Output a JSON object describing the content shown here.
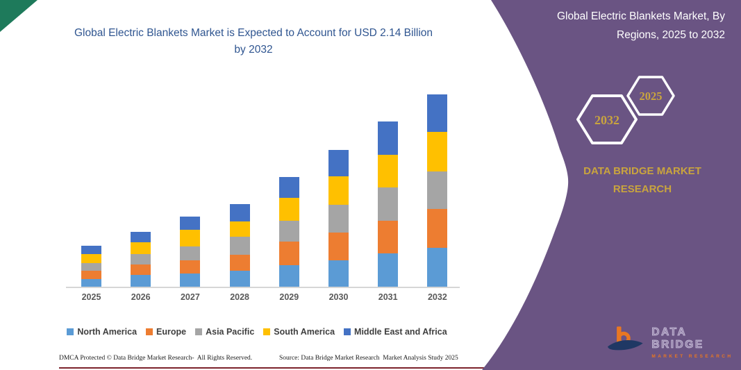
{
  "page": {
    "background": "#ffffff",
    "corner_triangle_color": "#1E7A5B",
    "bottom_rule_color": "#7B222B"
  },
  "chart_data": {
    "type": "bar",
    "stacked": true,
    "title": "Global Electric Blankets Market is Expected to Account for USD 2.14 Billion by 2032",
    "unit": "USD Billion",
    "categories": [
      "2025",
      "2026",
      "2027",
      "2028",
      "2029",
      "2030",
      "2031",
      "2032"
    ],
    "series": [
      {
        "name": "North America",
        "color": "#5B9BD5",
        "values": [
          0.085,
          0.129,
          0.149,
          0.18,
          0.237,
          0.294,
          0.369,
          0.431
        ]
      },
      {
        "name": "Europe",
        "color": "#ED7D31",
        "values": [
          0.095,
          0.116,
          0.147,
          0.176,
          0.268,
          0.307,
          0.366,
          0.433
        ]
      },
      {
        "name": "Asia Pacific",
        "color": "#A5A5A5",
        "values": [
          0.085,
          0.121,
          0.155,
          0.199,
          0.232,
          0.315,
          0.369,
          0.418
        ]
      },
      {
        "name": "South America",
        "color": "#FFC000",
        "values": [
          0.1,
          0.129,
          0.18,
          0.172,
          0.253,
          0.312,
          0.366,
          0.446
        ]
      },
      {
        "name": "Middle East and Africa",
        "color": "#4472C4",
        "values": [
          0.093,
          0.116,
          0.147,
          0.196,
          0.232,
          0.299,
          0.369,
          0.412
        ]
      }
    ],
    "totals": [
      0.46,
      0.61,
      0.78,
      0.92,
      1.22,
      1.53,
      1.84,
      2.14
    ],
    "ylim": [
      0,
      2.2
    ],
    "y_axis_visible": false,
    "grid": false,
    "legend_position": "bottom",
    "title_color": "#2F5590"
  },
  "sidebar": {
    "panel_color": "#6A5483",
    "title": "Global Electric Blankets Market, By Regions, 2025 to 2032",
    "hexagon_badges": [
      {
        "label": "2032"
      },
      {
        "label": "2025"
      }
    ],
    "badge_text_color": "#C9A43E",
    "brand_line1": "DATA BRIDGE MARKET",
    "brand_line2": "RESEARCH",
    "logo": {
      "name_text": "DATA BRIDGE",
      "tagline_text": "MARKET RESEARCH",
      "orange": "#E87722",
      "navy": "#1F3864"
    }
  },
  "footer": {
    "dmca_text": "DMCA Protected © Data Bridge Market Research-  All Rights Reserved.",
    "source_text": "Source: Data Bridge Market Research  Market Analysis Study 2025"
  }
}
